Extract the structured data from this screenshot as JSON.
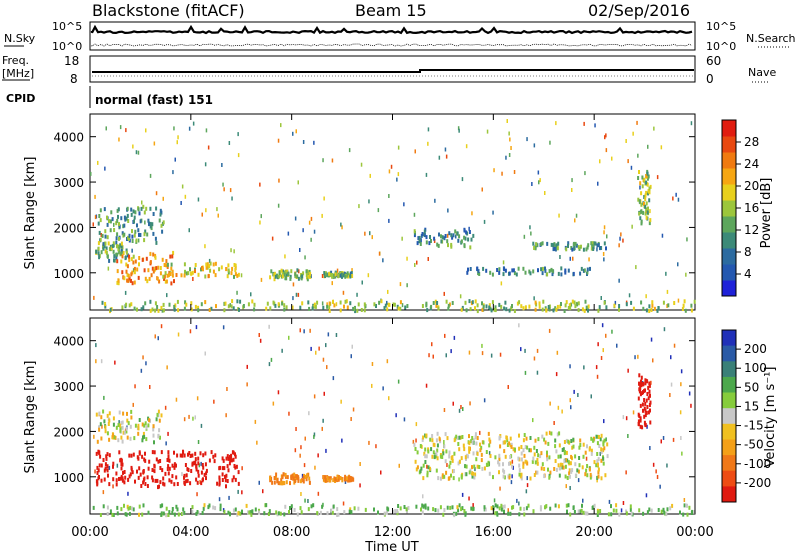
{
  "header": {
    "station": "Blackstone (fitACF)",
    "beam": "Beam 15",
    "date": "02/Sep/2016"
  },
  "top_strip": {
    "nsky_label": "N.Sky",
    "nsky_ticks": [
      "10^5",
      "10^0"
    ],
    "nsearch_label": "N.Search",
    "freq_label_1": "Freq.",
    "freq_label_2": "[MHz]",
    "freq_ticks": [
      "18",
      "8"
    ],
    "nave_label": "Nave",
    "nave_ticks": [
      "60",
      "0"
    ],
    "cpid_label": "CPID",
    "cpid_text": "normal (fast) 151"
  },
  "x_axis": {
    "label": "Time UT",
    "ticks": [
      "00:00",
      "04:00",
      "08:00",
      "12:00",
      "16:00",
      "20:00",
      "00:00"
    ]
  },
  "y_axis": {
    "label": "Slant Range [km]",
    "ticks": [
      "1000",
      "2000",
      "3000",
      "4000"
    ]
  },
  "power_colorbar": {
    "label": "Power [dB]",
    "ticks": [
      "4",
      "8",
      "12",
      "16",
      "20",
      "24",
      "28"
    ],
    "colors": [
      "#1f22d8",
      "#2458b0",
      "#2c6ba0",
      "#3c8a78",
      "#5da65c",
      "#9cc63c",
      "#e8d01c",
      "#f6a612",
      "#f07a10",
      "#e84810",
      "#e01c10"
    ]
  },
  "velocity_colorbar": {
    "label": "Velocity [m s⁻¹]",
    "ticks": [
      "200",
      "100",
      "50",
      "15",
      "-15",
      "-50",
      "-100",
      "-200"
    ],
    "colors": [
      "#2030b8",
      "#2a5aa6",
      "#3a8078",
      "#4ca84c",
      "#86cc3c",
      "#c8c8c8",
      "#f0c020",
      "#f4a018",
      "#f07818",
      "#ee4c14",
      "#e01a10"
    ]
  },
  "chart_data": {
    "type": "heatmap",
    "time_range_hours": [
      0,
      24
    ],
    "slant_range_km": [
      180,
      4500
    ],
    "panels": [
      {
        "name": "Power",
        "units": "dB",
        "scatter": [
          {
            "t0": 0.3,
            "t1": 2.9,
            "r0": 1700,
            "r1": 2500,
            "level": 10
          },
          {
            "t0": 0.2,
            "t1": 1.5,
            "r0": 1300,
            "r1": 1700,
            "level": 12
          },
          {
            "t0": 1.0,
            "t1": 3.3,
            "r0": 800,
            "r1": 1500,
            "level": 22
          },
          {
            "t0": 2.9,
            "t1": 5.9,
            "r0": 950,
            "r1": 1250,
            "level": 18
          },
          {
            "t0": 7.1,
            "t1": 8.7,
            "r0": 900,
            "r1": 1100,
            "level": 14
          },
          {
            "t0": 9.2,
            "t1": 10.4,
            "r0": 950,
            "r1": 1050,
            "level": 12
          },
          {
            "t0": 12.8,
            "t1": 15.2,
            "r0": 1600,
            "r1": 2000,
            "level": 8
          },
          {
            "t0": 14.8,
            "t1": 19.8,
            "r0": 1000,
            "r1": 1150,
            "level": 8
          },
          {
            "t0": 17.5,
            "t1": 20.5,
            "r0": 1550,
            "r1": 1700,
            "level": 9
          },
          {
            "t0": 21.7,
            "t1": 22.2,
            "r0": 2100,
            "r1": 3300,
            "level": 14
          },
          {
            "t0": 0.0,
            "t1": 24.0,
            "r0": 200,
            "r1": 420,
            "level": 14
          }
        ]
      },
      {
        "name": "Velocity",
        "units": "m/s",
        "scatter": [
          {
            "t0": 0.2,
            "t1": 2.8,
            "r0": 1800,
            "r1": 2500,
            "level": 0
          },
          {
            "t0": 0.2,
            "t1": 5.9,
            "r0": 800,
            "r1": 1600,
            "level": -200
          },
          {
            "t0": 7.1,
            "t1": 8.7,
            "r0": 900,
            "r1": 1100,
            "level": -60
          },
          {
            "t0": 9.2,
            "t1": 10.4,
            "r0": 950,
            "r1": 1050,
            "level": -60
          },
          {
            "t0": 12.8,
            "t1": 20.5,
            "r0": 1000,
            "r1": 2000,
            "level": 0
          },
          {
            "t0": 21.7,
            "t1": 22.2,
            "r0": 2100,
            "r1": 3300,
            "level": -200
          },
          {
            "t0": 0.0,
            "t1": 24.0,
            "r0": 200,
            "r1": 420,
            "level": 20
          }
        ]
      }
    ]
  }
}
